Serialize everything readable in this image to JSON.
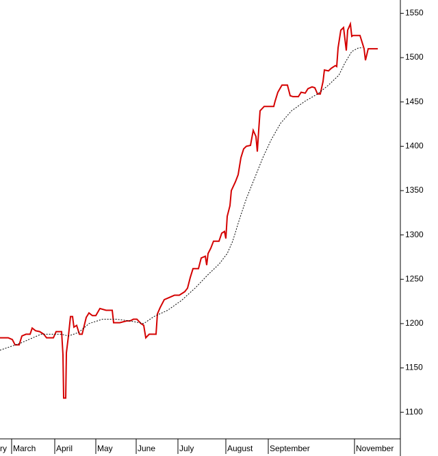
{
  "chart_data": {
    "type": "line",
    "series": [
      {
        "color": "#d40000",
        "style": "solid",
        "x": [
          0,
          6,
          9,
          11,
          14,
          16,
          19,
          22,
          23.5,
          26,
          29,
          32,
          34,
          39,
          41,
          45,
          46,
          46.5,
          48,
          48.5,
          50,
          51.5,
          53,
          54,
          56,
          58,
          60,
          63,
          65,
          67.5,
          70,
          73,
          77.5,
          82,
          83,
          87.5,
          92.5,
          95,
          97.5,
          100,
          103,
          105,
          106.5,
          109,
          114,
          115,
          117,
          120,
          123,
          127.5,
          131,
          135,
          137,
          139,
          141,
          145,
          147,
          150,
          151,
          152,
          154,
          156,
          160,
          162,
          164,
          165,
          166,
          168,
          169,
          172,
          174,
          176,
          178,
          180,
          183,
          185,
          187,
          188,
          189,
          190,
          193,
          200,
          201,
          203,
          206,
          210,
          212,
          214,
          218,
          220,
          223,
          225,
          228,
          230,
          232,
          234,
          236,
          237,
          240,
          242,
          245,
          246,
          247,
          249,
          251,
          253,
          254,
          256,
          257,
          258,
          263,
          265,
          266,
          267,
          269,
          276
        ],
        "values": [
          1184,
          1184,
          1182,
          1176,
          1176,
          1186,
          1188,
          1188,
          1195,
          1192,
          1191,
          1188,
          1184,
          1184,
          1191,
          1191,
          1165,
          1116,
          1116,
          1167,
          1186,
          1208,
          1208,
          1196,
          1198,
          1188,
          1188,
          1207,
          1212,
          1209,
          1209,
          1217,
          1215,
          1215,
          1201,
          1201,
          1203,
          1203,
          1205,
          1205,
          1200,
          1198,
          1184,
          1188,
          1188,
          1211,
          1218,
          1227,
          1229,
          1232,
          1232,
          1236,
          1240,
          1252,
          1262,
          1262,
          1274,
          1276,
          1266,
          1279,
          1285,
          1293,
          1293,
          1302,
          1304,
          1296,
          1321,
          1333,
          1350,
          1360,
          1368,
          1387,
          1397,
          1400,
          1401,
          1418,
          1411,
          1394,
          1418,
          1440,
          1445,
          1445,
          1451,
          1461,
          1469,
          1469,
          1457,
          1456,
          1456,
          1461,
          1460,
          1465,
          1467,
          1466,
          1459,
          1459,
          1473,
          1486,
          1485,
          1488,
          1491,
          1490,
          1511,
          1531,
          1534,
          1508,
          1531,
          1538,
          1524,
          1525,
          1525,
          1515,
          1510,
          1497,
          1510,
          1510
        ]
      },
      {
        "color": "#000000",
        "style": "dotted",
        "x": [
          0,
          15,
          30,
          45,
          50,
          57.5,
          65,
          75,
          85,
          95,
          105,
          112.5,
          122.5,
          132.5,
          142.5,
          152.5,
          160,
          166,
          170,
          175,
          180,
          186,
          192,
          198,
          205,
          213,
          223,
          232,
          240,
          247.5,
          252,
          257,
          262,
          265
        ],
        "values": [
          1170,
          1178,
          1188,
          1188,
          1186,
          1190,
          1200,
          1205,
          1205,
          1203,
          1200,
          1208,
          1215,
          1226,
          1240,
          1256,
          1267,
          1279,
          1293,
          1318,
          1341,
          1364,
          1387,
          1407,
          1426,
          1440,
          1451,
          1459,
          1469,
          1480,
          1494,
          1507,
          1511,
          1511
        ]
      }
    ],
    "xlim": [
      0,
      292
    ],
    "xticks": [
      {
        "value": -1,
        "label": "ry"
      },
      {
        "value": 8.5,
        "label": "March"
      },
      {
        "value": 40,
        "label": "April"
      },
      {
        "value": 70,
        "label": "May"
      },
      {
        "value": 99.5,
        "label": "June"
      },
      {
        "value": 130,
        "label": "July"
      },
      {
        "value": 165,
        "label": "August"
      },
      {
        "value": 196,
        "label": "September"
      },
      {
        "value": 259,
        "label": "November"
      }
    ],
    "ylim": [
      1070,
      1565
    ],
    "yticks": [
      1100,
      1150,
      1200,
      1250,
      1300,
      1350,
      1400,
      1450,
      1500,
      1550
    ],
    "y_axis_side": "right"
  }
}
